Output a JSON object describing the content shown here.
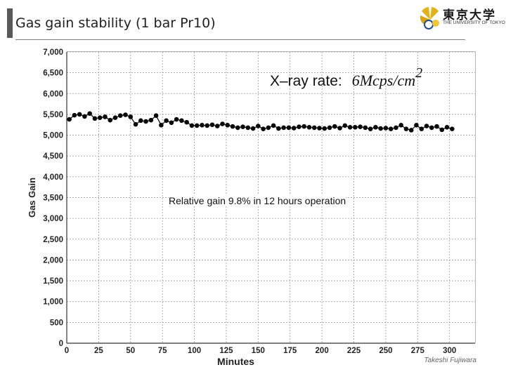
{
  "slide": {
    "title": "Gas gain stability (1 bar Pr10)",
    "footer": "Takeshi Fujiwara"
  },
  "logo": {
    "name_jp": "東京大学",
    "name_en": "THE UNIVERSITY OF TOKYO",
    "icon": "ginkgo-leaf-icon"
  },
  "chart_data": {
    "type": "scatter",
    "xlabel": "Minutes",
    "ylabel": "Gas Gain",
    "xlim": [
      0,
      320
    ],
    "ylim": [
      0,
      7000
    ],
    "xticks": [
      0,
      25,
      50,
      75,
      100,
      125,
      150,
      175,
      200,
      225,
      250,
      275,
      300
    ],
    "yticks": [
      0,
      500,
      1000,
      1500,
      2000,
      2500,
      3000,
      3500,
      4000,
      4500,
      5000,
      5500,
      6000,
      6500,
      7000
    ],
    "ytick_labels": [
      "0",
      "500",
      "1,000",
      "1,500",
      "2,000",
      "2,500",
      "3,000",
      "3,500",
      "4,000",
      "4,500",
      "5,000",
      "5,500",
      "6,000",
      "6,500",
      "7,000"
    ],
    "grid": true,
    "annotation_prefix": "X–ray rate:",
    "annotation_math": "6Mcps/cm",
    "annotation_sup": "2",
    "note": "Relative gain 9.8% in 12 hours operation",
    "series": [
      {
        "name": "gas gain",
        "x": [
          2,
          6,
          10,
          14,
          18,
          22,
          26,
          30,
          34,
          38,
          42,
          46,
          50,
          54,
          58,
          62,
          66,
          70,
          74,
          78,
          82,
          86,
          90,
          94,
          98,
          102,
          106,
          110,
          114,
          118,
          122,
          126,
          130,
          134,
          138,
          142,
          146,
          150,
          154,
          158,
          162,
          166,
          170,
          174,
          178,
          182,
          186,
          190,
          194,
          198,
          202,
          206,
          210,
          214,
          218,
          222,
          226,
          230,
          234,
          238,
          242,
          246,
          250,
          254,
          258,
          262,
          266,
          270,
          274,
          278,
          282,
          286,
          290,
          294,
          298,
          302
        ],
        "y": [
          5380,
          5480,
          5500,
          5450,
          5520,
          5400,
          5420,
          5440,
          5360,
          5420,
          5470,
          5490,
          5440,
          5260,
          5350,
          5330,
          5360,
          5470,
          5240,
          5350,
          5300,
          5380,
          5350,
          5310,
          5230,
          5230,
          5240,
          5230,
          5250,
          5220,
          5270,
          5240,
          5210,
          5180,
          5200,
          5180,
          5160,
          5220,
          5150,
          5180,
          5230,
          5160,
          5180,
          5180,
          5170,
          5200,
          5210,
          5190,
          5180,
          5170,
          5160,
          5180,
          5210,
          5170,
          5230,
          5190,
          5190,
          5200,
          5180,
          5150,
          5190,
          5160,
          5170,
          5150,
          5180,
          5240,
          5150,
          5120,
          5240,
          5150,
          5220,
          5180,
          5210,
          5130,
          5190,
          5150
        ]
      }
    ]
  }
}
